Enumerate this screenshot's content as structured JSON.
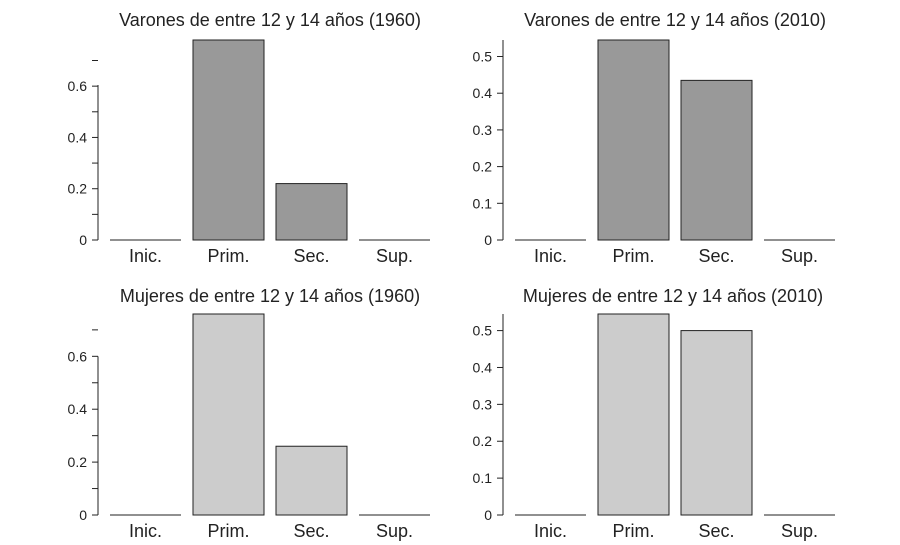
{
  "chart_data": [
    {
      "type": "bar",
      "title": "Varones de entre 12 y 14 años (1960)",
      "categories": [
        "Inic.",
        "Prim.",
        "Sec.",
        "Sup."
      ],
      "values": [
        0.0,
        0.78,
        0.22,
        0.0
      ],
      "yticks": [
        "0",
        "0.2",
        "0.4",
        "0.6"
      ],
      "ylim": [
        0,
        0.78
      ],
      "bar_color": "#999999",
      "xlabel": "",
      "ylabel": ""
    },
    {
      "type": "bar",
      "title": "Varones de entre 12 y 14 años (2010)",
      "categories": [
        "Inic.",
        "Prim.",
        "Sec.",
        "Sup."
      ],
      "values": [
        0.0,
        0.545,
        0.435,
        0.0
      ],
      "yticks": [
        "0",
        "0.1",
        "0.2",
        "0.3",
        "0.4",
        "0.5"
      ],
      "ylim": [
        0,
        0.545
      ],
      "bar_color": "#999999",
      "xlabel": "",
      "ylabel": ""
    },
    {
      "type": "bar",
      "title": "Mujeres de entre 12 y 14 años (1960)",
      "categories": [
        "Inic.",
        "Prim.",
        "Sec.",
        "Sup."
      ],
      "values": [
        0.0,
        0.76,
        0.26,
        0.0
      ],
      "yticks": [
        "0",
        "0.2",
        "0.4",
        "0.6"
      ],
      "ylim": [
        0,
        0.76
      ],
      "bar_color": "#cccccc",
      "xlabel": "",
      "ylabel": ""
    },
    {
      "type": "bar",
      "title": "Mujeres de entre 12 y 14 años (2010)",
      "categories": [
        "Inic.",
        "Prim.",
        "Sec.",
        "Sup."
      ],
      "values": [
        0.0,
        0.545,
        0.5,
        0.0
      ],
      "yticks": [
        "0",
        "0.1",
        "0.2",
        "0.3",
        "0.4",
        "0.5"
      ],
      "ylim": [
        0,
        0.545
      ],
      "bar_color": "#cccccc",
      "xlabel": "",
      "ylabel": ""
    }
  ]
}
